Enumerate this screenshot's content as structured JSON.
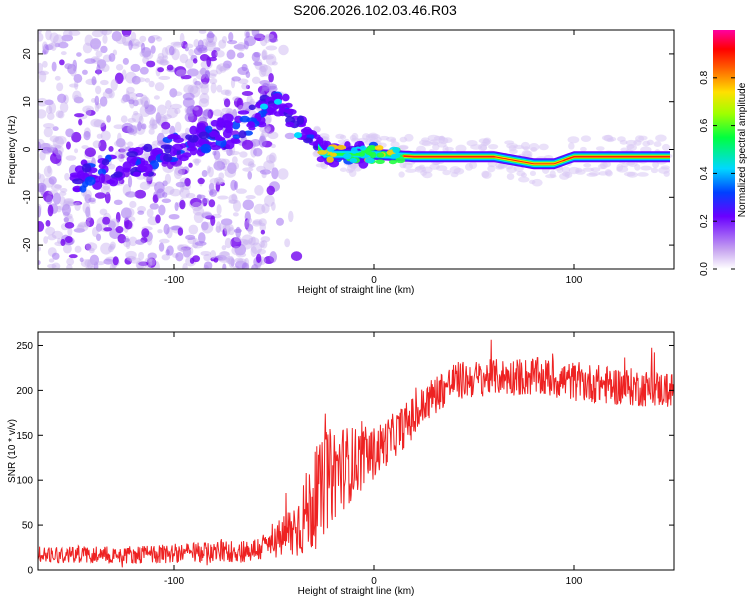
{
  "title": "S206.2026.102.03.46.R03",
  "chart_data": [
    {
      "type": "heatmap",
      "name": "spectrogram",
      "xlabel": "Height of straight line (km)",
      "ylabel": "Frequency (Hz)",
      "xlim": [
        -168,
        150
      ],
      "ylim": [
        -25,
        25
      ],
      "xticks": [
        -100,
        0,
        100
      ],
      "yticks": [
        -20,
        -10,
        0,
        10,
        20
      ],
      "colorbar": {
        "label": "Normalized spectral amplitude",
        "range": [
          0,
          1
        ],
        "ticks": [
          "0.0",
          "0.2",
          "0.4",
          "0.6",
          "0.8"
        ],
        "tick_values": [
          0,
          0.2,
          0.4,
          0.6,
          0.8
        ]
      },
      "ridge": {
        "description_points_x": [
          -160,
          -130,
          -110,
          -90,
          -70,
          -55,
          -45,
          -35,
          -25,
          -15,
          0,
          20,
          60,
          80,
          90,
          100,
          120,
          148
        ],
        "description_points_y": [
          -7,
          -4,
          -2,
          2,
          4,
          8,
          10,
          4,
          -1,
          -1,
          -1,
          -1.5,
          -1.5,
          -3,
          -3,
          -1.5,
          -1.5,
          -1.5
        ]
      }
    },
    {
      "type": "line",
      "name": "snr",
      "xlabel": "Height of straight line (km)",
      "ylabel": "SNR (10 * v/v)",
      "xlim": [
        -168,
        150
      ],
      "ylim": [
        0,
        265
      ],
      "xticks": [
        -100,
        0,
        100
      ],
      "yticks": [
        0,
        50,
        100,
        150,
        200,
        250
      ],
      "color": "#ee2222",
      "trend_x": [
        -168,
        -120,
        -80,
        -60,
        -50,
        -40,
        -30,
        -20,
        -10,
        0,
        10,
        20,
        30,
        40,
        60,
        80,
        100,
        120,
        150
      ],
      "trend_y": [
        18,
        17,
        20,
        22,
        30,
        45,
        75,
        110,
        120,
        130,
        150,
        170,
        195,
        210,
        215,
        215,
        210,
        205,
        200
      ],
      "noise_amp": [
        10,
        10,
        12,
        14,
        18,
        35,
        55,
        55,
        40,
        30,
        25,
        25,
        22,
        22,
        20,
        22,
        22,
        22,
        20
      ]
    }
  ]
}
